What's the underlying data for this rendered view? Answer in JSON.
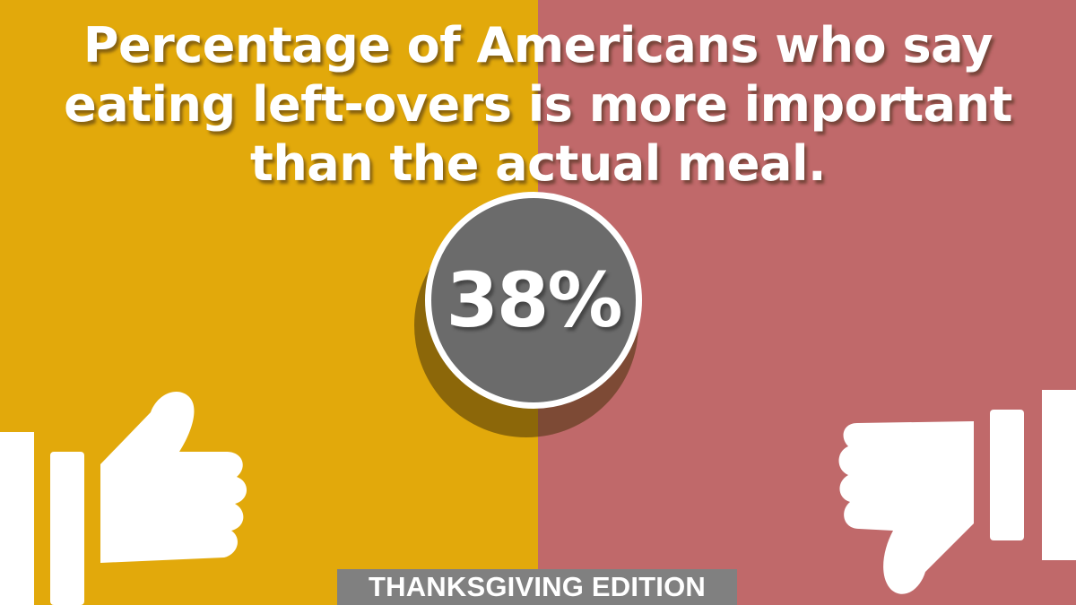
{
  "headline": {
    "line1": "Percentage of Americans who say",
    "line2": "eating left-overs is more important",
    "line3": "than the actual meal."
  },
  "stat": {
    "value": "38%",
    "percent": 38
  },
  "badge": {
    "label": "THANKSGIVING EDITION"
  },
  "icons": {
    "left": "thumbs-up-icon",
    "right": "thumbs-down-icon"
  },
  "colors": {
    "left_panel": "#e2a90b",
    "right_panel": "#c0696a",
    "circle": "#6b6b6b",
    "badge": "#808080",
    "text": "#ffffff"
  }
}
